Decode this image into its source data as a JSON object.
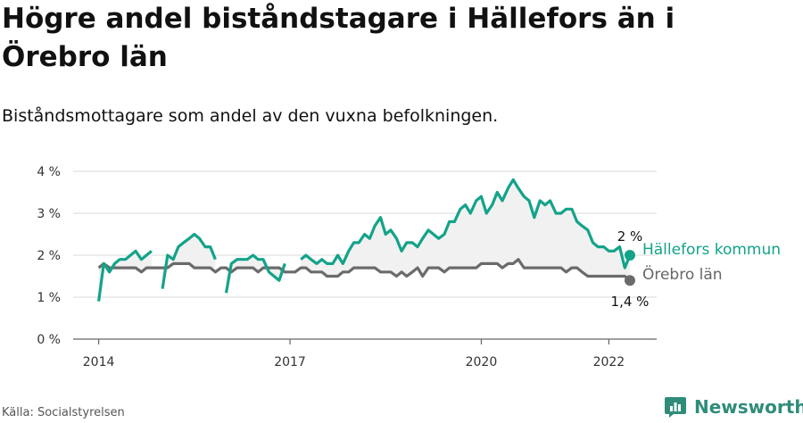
{
  "title": "Högre andel biståndstagare i Hällefors än i Örebro län",
  "subtitle": "Biståndsmottagare som andel av den vuxna befolkningen.",
  "source": "Källa: Socialstyrelsen",
  "brand": {
    "name": "Newsworthy",
    "icon": "newsworthy-bar-chart-icon",
    "color": "#2f8c7a"
  },
  "chart_data": {
    "type": "line",
    "y_ticks": [
      "0 %",
      "1 %",
      "2 %",
      "3 %",
      "4 %"
    ],
    "ylim": [
      0,
      4
    ],
    "x_ticks": [
      {
        "label": "2014",
        "x": 2014.0
      },
      {
        "label": "2017",
        "x": 2017.0
      },
      {
        "label": "2020",
        "x": 2020.0
      },
      {
        "label": "2022",
        "x": 2022.0
      }
    ],
    "xlim": [
      2013.6,
      2022.75
    ],
    "grid": true,
    "shade_between_series": true,
    "series": [
      {
        "name": "Hällefors kommun",
        "color": "#13a389",
        "end_label": "2 %",
        "points": [
          [
            2014.0,
            0.9
          ],
          [
            2014.08,
            1.8
          ],
          [
            2014.17,
            1.6
          ],
          [
            2014.25,
            1.8
          ],
          [
            2014.33,
            1.9
          ],
          [
            2014.42,
            1.9
          ],
          [
            2014.5,
            2.0
          ],
          [
            2014.58,
            2.1
          ],
          [
            2014.67,
            1.9
          ],
          [
            2014.75,
            2.0
          ],
          [
            2014.83,
            2.1
          ],
          null,
          [
            2015.0,
            1.2
          ],
          [
            2015.08,
            2.0
          ],
          [
            2015.17,
            1.9
          ],
          [
            2015.25,
            2.2
          ],
          [
            2015.33,
            2.3
          ],
          [
            2015.42,
            2.4
          ],
          [
            2015.5,
            2.5
          ],
          [
            2015.58,
            2.4
          ],
          [
            2015.67,
            2.2
          ],
          [
            2015.75,
            2.2
          ],
          [
            2015.83,
            1.9
          ],
          null,
          [
            2016.0,
            1.1
          ],
          [
            2016.08,
            1.8
          ],
          [
            2016.17,
            1.9
          ],
          [
            2016.25,
            1.9
          ],
          [
            2016.33,
            1.9
          ],
          [
            2016.42,
            2.0
          ],
          [
            2016.5,
            1.9
          ],
          [
            2016.58,
            1.9
          ],
          [
            2016.67,
            1.6
          ],
          [
            2016.75,
            1.5
          ],
          [
            2016.83,
            1.4
          ],
          [
            2016.92,
            1.8
          ],
          null,
          [
            2017.17,
            1.9
          ],
          [
            2017.25,
            2.0
          ],
          [
            2017.33,
            1.9
          ],
          [
            2017.42,
            1.8
          ],
          [
            2017.5,
            1.9
          ],
          [
            2017.58,
            1.8
          ],
          [
            2017.67,
            1.8
          ],
          [
            2017.75,
            2.0
          ],
          [
            2017.83,
            1.8
          ],
          [
            2017.92,
            2.1
          ],
          [
            2018.0,
            2.3
          ],
          [
            2018.08,
            2.3
          ],
          [
            2018.17,
            2.5
          ],
          [
            2018.25,
            2.4
          ],
          [
            2018.33,
            2.7
          ],
          [
            2018.42,
            2.9
          ],
          [
            2018.5,
            2.5
          ],
          [
            2018.58,
            2.6
          ],
          [
            2018.67,
            2.4
          ],
          [
            2018.75,
            2.1
          ],
          [
            2018.83,
            2.3
          ],
          [
            2018.92,
            2.3
          ],
          [
            2019.0,
            2.2
          ],
          [
            2019.08,
            2.4
          ],
          [
            2019.17,
            2.6
          ],
          [
            2019.25,
            2.5
          ],
          [
            2019.33,
            2.4
          ],
          [
            2019.42,
            2.5
          ],
          [
            2019.5,
            2.8
          ],
          [
            2019.58,
            2.8
          ],
          [
            2019.67,
            3.1
          ],
          [
            2019.75,
            3.2
          ],
          [
            2019.83,
            3.0
          ],
          [
            2019.92,
            3.3
          ],
          [
            2020.0,
            3.4
          ],
          [
            2020.08,
            3.0
          ],
          [
            2020.17,
            3.2
          ],
          [
            2020.25,
            3.5
          ],
          [
            2020.33,
            3.3
          ],
          [
            2020.42,
            3.6
          ],
          [
            2020.5,
            3.8
          ],
          [
            2020.58,
            3.6
          ],
          [
            2020.67,
            3.4
          ],
          [
            2020.75,
            3.3
          ],
          [
            2020.83,
            2.9
          ],
          [
            2020.92,
            3.3
          ],
          [
            2021.0,
            3.2
          ],
          [
            2021.08,
            3.3
          ],
          [
            2021.17,
            3.0
          ],
          [
            2021.25,
            3.0
          ],
          [
            2021.33,
            3.1
          ],
          [
            2021.42,
            3.1
          ],
          [
            2021.5,
            2.8
          ],
          [
            2021.58,
            2.7
          ],
          [
            2021.67,
            2.6
          ],
          [
            2021.75,
            2.3
          ],
          [
            2021.83,
            2.2
          ],
          [
            2021.92,
            2.2
          ],
          [
            2022.0,
            2.1
          ],
          [
            2022.08,
            2.1
          ],
          [
            2022.17,
            2.2
          ],
          [
            2022.25,
            1.7
          ],
          [
            2022.33,
            2.0
          ]
        ]
      },
      {
        "name": "Örebro län",
        "color": "#6b6b6b",
        "end_label": "1,4 %",
        "points": [
          [
            2014.0,
            1.7
          ],
          [
            2014.08,
            1.8
          ],
          [
            2014.17,
            1.7
          ],
          [
            2014.25,
            1.7
          ],
          [
            2014.33,
            1.7
          ],
          [
            2014.42,
            1.7
          ],
          [
            2014.5,
            1.7
          ],
          [
            2014.58,
            1.7
          ],
          [
            2014.67,
            1.6
          ],
          [
            2014.75,
            1.7
          ],
          [
            2014.83,
            1.7
          ],
          [
            2014.92,
            1.7
          ],
          [
            2015.0,
            1.7
          ],
          [
            2015.08,
            1.7
          ],
          [
            2015.17,
            1.8
          ],
          [
            2015.25,
            1.8
          ],
          [
            2015.33,
            1.8
          ],
          [
            2015.42,
            1.8
          ],
          [
            2015.5,
            1.7
          ],
          [
            2015.58,
            1.7
          ],
          [
            2015.67,
            1.7
          ],
          [
            2015.75,
            1.7
          ],
          [
            2015.83,
            1.6
          ],
          [
            2015.92,
            1.7
          ],
          [
            2016.0,
            1.7
          ],
          [
            2016.08,
            1.6
          ],
          [
            2016.17,
            1.7
          ],
          [
            2016.25,
            1.7
          ],
          [
            2016.33,
            1.7
          ],
          [
            2016.42,
            1.7
          ],
          [
            2016.5,
            1.6
          ],
          [
            2016.58,
            1.7
          ],
          [
            2016.67,
            1.7
          ],
          [
            2016.75,
            1.7
          ],
          [
            2016.83,
            1.7
          ],
          [
            2016.92,
            1.6
          ],
          [
            2017.0,
            1.6
          ],
          [
            2017.08,
            1.6
          ],
          [
            2017.17,
            1.7
          ],
          [
            2017.25,
            1.7
          ],
          [
            2017.33,
            1.6
          ],
          [
            2017.42,
            1.6
          ],
          [
            2017.5,
            1.6
          ],
          [
            2017.58,
            1.5
          ],
          [
            2017.67,
            1.5
          ],
          [
            2017.75,
            1.5
          ],
          [
            2017.83,
            1.6
          ],
          [
            2017.92,
            1.6
          ],
          [
            2018.0,
            1.7
          ],
          [
            2018.08,
            1.7
          ],
          [
            2018.17,
            1.7
          ],
          [
            2018.25,
            1.7
          ],
          [
            2018.33,
            1.7
          ],
          [
            2018.42,
            1.6
          ],
          [
            2018.5,
            1.6
          ],
          [
            2018.58,
            1.6
          ],
          [
            2018.67,
            1.5
          ],
          [
            2018.75,
            1.6
          ],
          [
            2018.83,
            1.5
          ],
          [
            2018.92,
            1.6
          ],
          [
            2019.0,
            1.7
          ],
          [
            2019.08,
            1.5
          ],
          [
            2019.17,
            1.7
          ],
          [
            2019.25,
            1.7
          ],
          [
            2019.33,
            1.7
          ],
          [
            2019.42,
            1.6
          ],
          [
            2019.5,
            1.7
          ],
          [
            2019.58,
            1.7
          ],
          [
            2019.67,
            1.7
          ],
          [
            2019.75,
            1.7
          ],
          [
            2019.83,
            1.7
          ],
          [
            2019.92,
            1.7
          ],
          [
            2020.0,
            1.8
          ],
          [
            2020.08,
            1.8
          ],
          [
            2020.17,
            1.8
          ],
          [
            2020.25,
            1.8
          ],
          [
            2020.33,
            1.7
          ],
          [
            2020.42,
            1.8
          ],
          [
            2020.5,
            1.8
          ],
          [
            2020.58,
            1.9
          ],
          [
            2020.67,
            1.7
          ],
          [
            2020.75,
            1.7
          ],
          [
            2020.83,
            1.7
          ],
          [
            2020.92,
            1.7
          ],
          [
            2021.0,
            1.7
          ],
          [
            2021.08,
            1.7
          ],
          [
            2021.17,
            1.7
          ],
          [
            2021.25,
            1.7
          ],
          [
            2021.33,
            1.6
          ],
          [
            2021.42,
            1.7
          ],
          [
            2021.5,
            1.7
          ],
          [
            2021.58,
            1.6
          ],
          [
            2021.67,
            1.5
          ],
          [
            2021.75,
            1.5
          ],
          [
            2021.83,
            1.5
          ],
          [
            2021.92,
            1.5
          ],
          [
            2022.0,
            1.5
          ],
          [
            2022.08,
            1.5
          ],
          [
            2022.17,
            1.5
          ],
          [
            2022.25,
            1.5
          ],
          [
            2022.33,
            1.4
          ]
        ]
      }
    ]
  }
}
